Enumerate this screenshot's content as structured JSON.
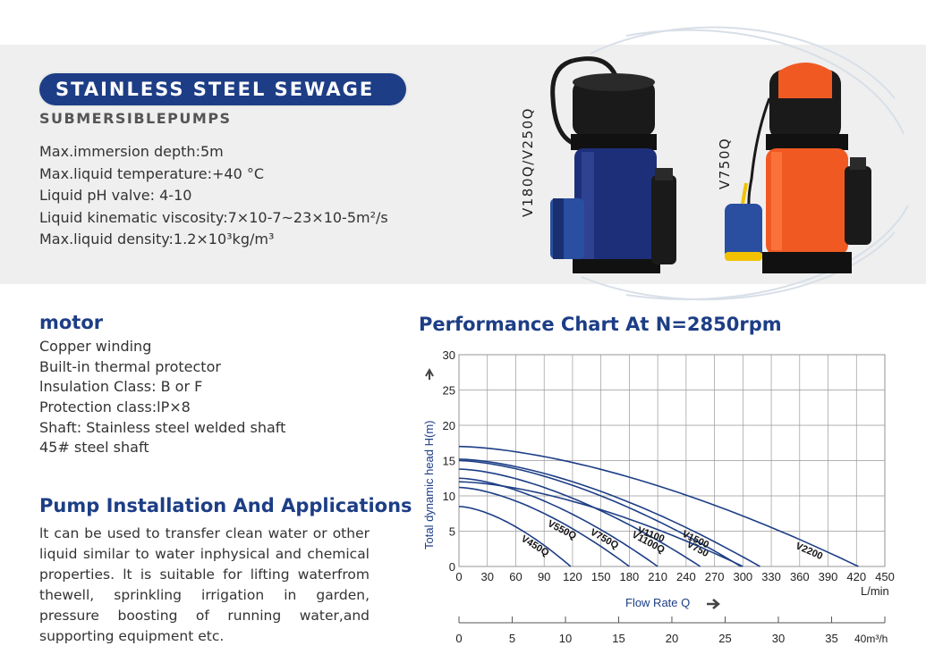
{
  "header": {
    "title": "STAINLESS STEEL SEWAGE",
    "subtitle": "SUBMERSIBLEPUMPS"
  },
  "specs": [
    "Max.immersion depth:5m",
    "Max.liquid temperature:+40 °C",
    "Liquid pH valve: 4-10",
    "Liquid kinematic viscosity:7×10-7~23×10-5m²/s",
    "Max.liquid density:1.2×10³kg/m³"
  ],
  "pumps": {
    "left_label": "V180Q/V250Q",
    "right_label": "V750Q",
    "colors": {
      "blue_body": "#1e2f7a",
      "orange_body": "#f05a22",
      "black": "#1a1a1a",
      "float_blue": "#2a4fa0",
      "float_yellow": "#f2c200"
    }
  },
  "motor": {
    "heading": "motor",
    "items": [
      "Copper winding",
      "Built-in thermal protector",
      "lnsulation Class: B or F",
      "Protection class:lP×8",
      "Shaft: Stainless steel welded shaft",
      "45# steel shaft"
    ]
  },
  "install": {
    "heading": "Pump Installation And Applications",
    "text": "lt can be used to transfer clean water or other liquid similar to water inphysical and chemical properties. lt is suitable for lifting waterfrom thewell, sprinkling irrigation in garden, pressure boosting of running water,and supporting equipment etc."
  },
  "chart_data": {
    "type": "line",
    "title": "Performance Chart At N=2850rpm",
    "xlabel": "Flow Rate Q",
    "ylabel": "Total dynamic head H(m)",
    "x_unit": "L/min",
    "secondary_x_unit": "40m³/h",
    "xlim": [
      0,
      450
    ],
    "ylim": [
      0,
      30
    ],
    "x_ticks": [
      0,
      30,
      60,
      90,
      120,
      150,
      180,
      210,
      240,
      270,
      300,
      330,
      360,
      390,
      420,
      450
    ],
    "y_ticks": [
      0,
      5,
      10,
      15,
      20,
      25,
      30
    ],
    "secondary_x_ticks": [
      "0",
      "5",
      "10",
      "15",
      "20",
      "25",
      "30",
      "35"
    ],
    "secondary_x_values": [
      0,
      83.3,
      166.7,
      250,
      333.3,
      416.7,
      500,
      583.3
    ],
    "secondary_x_max": 666.7,
    "grid": true,
    "line_color": "#1d3e86",
    "series": [
      {
        "name": "V450Q",
        "max_flow": 118,
        "shutoff_head": 8.5,
        "label_at": 65
      },
      {
        "name": "V550Q",
        "max_flow": 180,
        "shutoff_head": 11.2,
        "label_at": 93
      },
      {
        "name": "V750Q",
        "max_flow": 210,
        "shutoff_head": 12.5,
        "label_at": 138
      },
      {
        "name": "V1100Q",
        "max_flow": 255,
        "shutoff_head": 13.8,
        "label_at": 182
      },
      {
        "name": "V750",
        "max_flow": 298,
        "shutoff_head": 15.0,
        "label_at": 240
      },
      {
        "name": "V1100",
        "max_flow": 300,
        "shutoff_head": 12.0,
        "label_at": 188
      },
      {
        "name": "V1500",
        "max_flow": 318,
        "shutoff_head": 15.2,
        "label_at": 235
      },
      {
        "name": "V2200",
        "max_flow": 422,
        "shutoff_head": 17.0,
        "label_at": 355
      }
    ]
  }
}
